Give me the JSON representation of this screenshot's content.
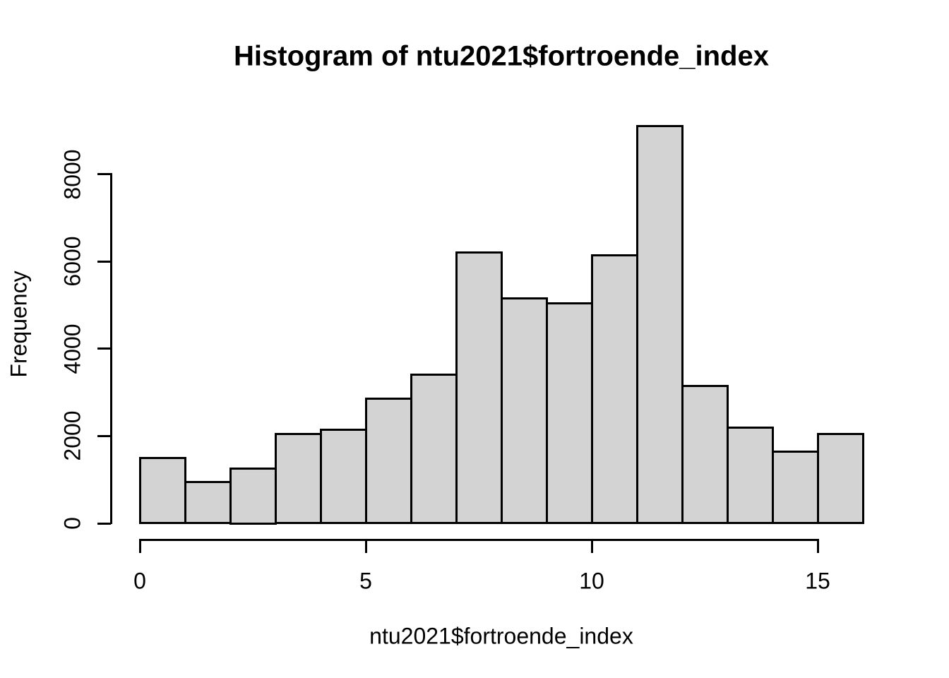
{
  "chart_data": {
    "type": "bar",
    "subtype": "histogram",
    "title": "Histogram of ntu2021$fortroende_index",
    "xlabel": "ntu2021$fortroende_index",
    "ylabel": "Frequency",
    "bin_edges": [
      0,
      1,
      2,
      3,
      4,
      5,
      6,
      7,
      8,
      9,
      10,
      11,
      12,
      13,
      14,
      15,
      16
    ],
    "counts": [
      1500,
      950,
      1250,
      2050,
      2150,
      2850,
      3400,
      6200,
      5150,
      5050,
      6150,
      9100,
      3150,
      2200,
      1650,
      2050
    ],
    "x_ticks": [
      0,
      5,
      10,
      15
    ],
    "y_ticks": [
      0,
      2000,
      4000,
      6000,
      8000
    ],
    "xlim": [
      0,
      16
    ],
    "ylim": [
      0,
      9100
    ],
    "grid": "off",
    "legend": "none",
    "bar_fill_color": "#d3d3d3",
    "bar_border_color": "#000000",
    "axis_color": "#000000",
    "text_color": "#000000",
    "background_color": "#ffffff"
  }
}
